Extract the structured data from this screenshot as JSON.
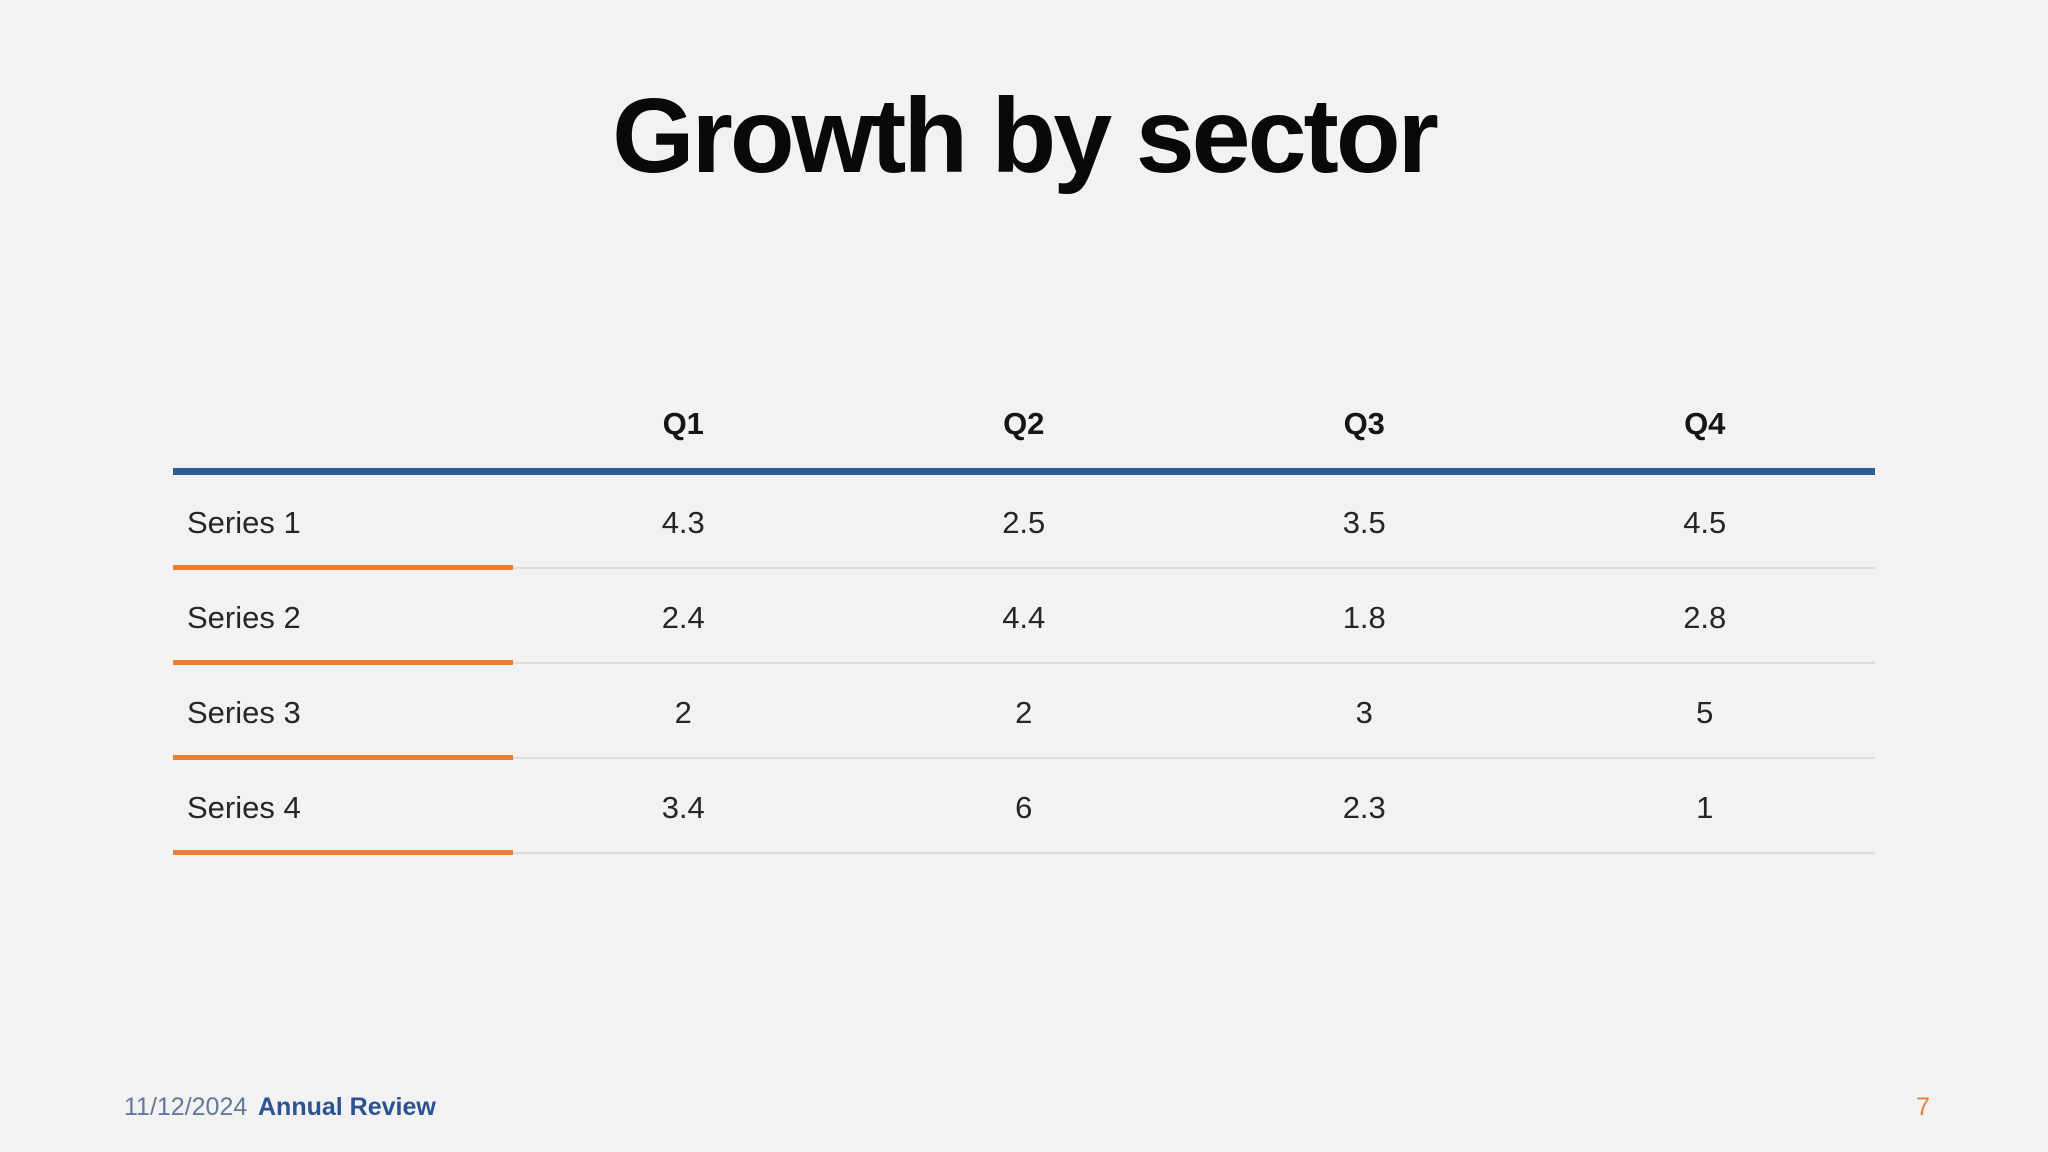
{
  "slide": {
    "title": "Growth by sector",
    "background_color": "#f2f2f2"
  },
  "table": {
    "header_rule_color": "#2f5b94",
    "row_accent_color": "#ed7d31",
    "divider_color": "#dcdcdc",
    "columns": [
      "Q1",
      "Q2",
      "Q3",
      "Q4"
    ],
    "rows": [
      {
        "label": "Series 1",
        "values": [
          "4.3",
          "2.5",
          "3.5",
          "4.5"
        ]
      },
      {
        "label": "Series 2",
        "values": [
          "2.4",
          "4.4",
          "1.8",
          "2.8"
        ]
      },
      {
        "label": "Series 3",
        "values": [
          "2",
          "2",
          "3",
          "5"
        ]
      },
      {
        "label": "Series 4",
        "values": [
          "3.4",
          "6",
          "2.3",
          "1"
        ]
      }
    ]
  },
  "footer": {
    "date": "11/12/2024",
    "label": "Annual Review",
    "page_number": "7",
    "date_color": "#64789c",
    "label_color": "#2b5291",
    "page_number_color": "#e2823e"
  },
  "chart_data": {
    "type": "table",
    "title": "Growth by sector",
    "categories": [
      "Q1",
      "Q2",
      "Q3",
      "Q4"
    ],
    "series": [
      {
        "name": "Series 1",
        "values": [
          4.3,
          2.5,
          3.5,
          4.5
        ]
      },
      {
        "name": "Series 2",
        "values": [
          2.4,
          4.4,
          1.8,
          2.8
        ]
      },
      {
        "name": "Series 3",
        "values": [
          2,
          2,
          3,
          5
        ]
      },
      {
        "name": "Series 4",
        "values": [
          3.4,
          6,
          2.3,
          1
        ]
      }
    ]
  }
}
